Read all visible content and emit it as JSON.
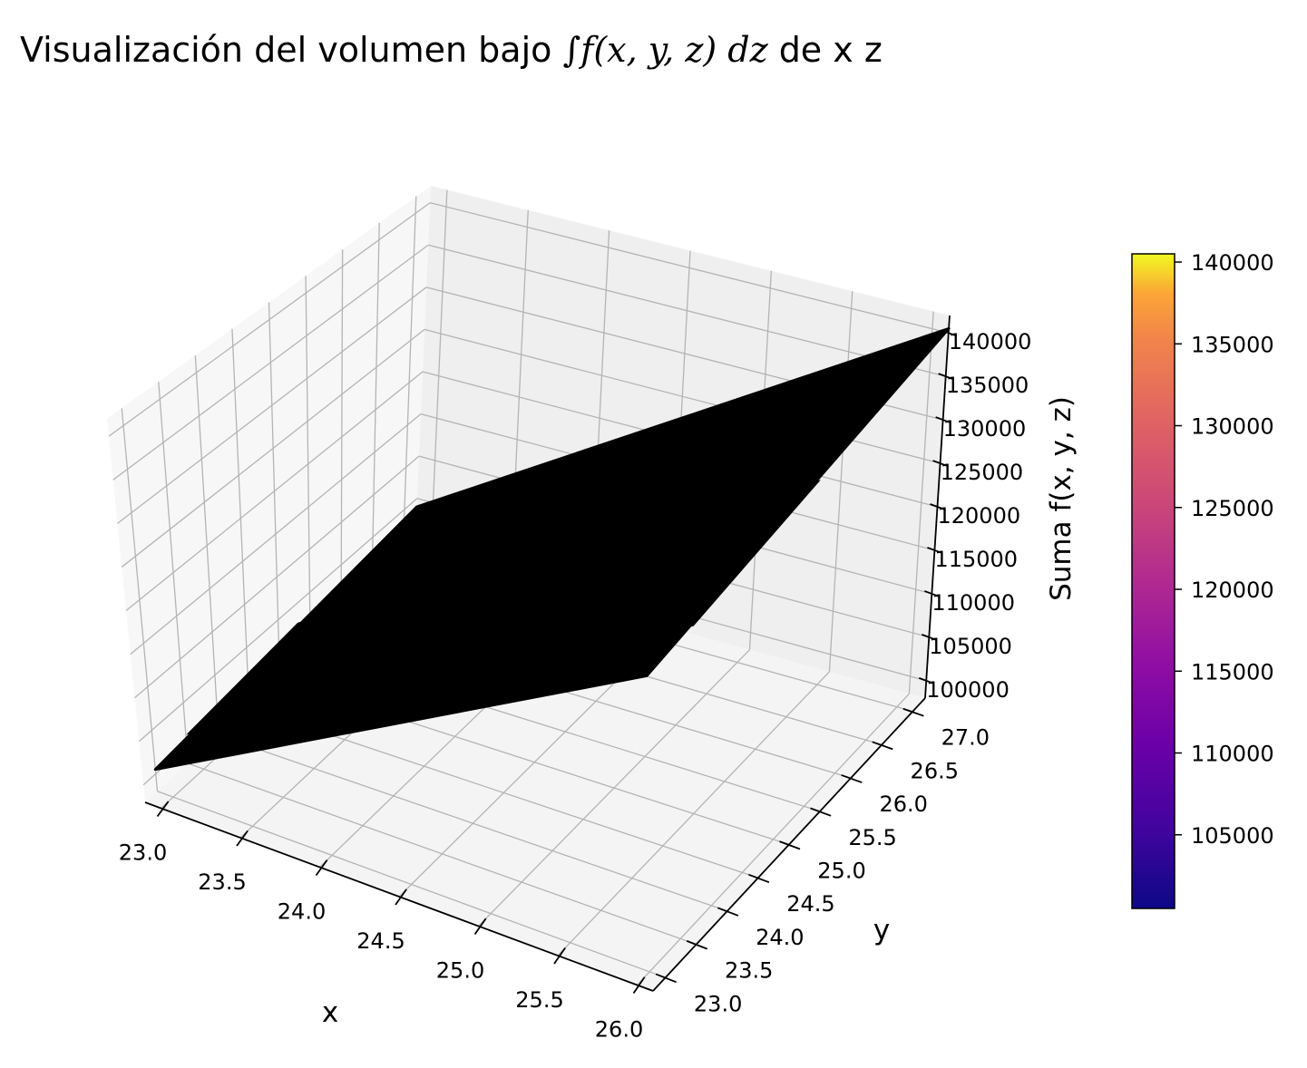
{
  "chart_data": {
    "type": "surface3d",
    "title_parts": {
      "prefix": "Visualización del volumen bajo ",
      "integral": "∫",
      "integrand": "f(x, y, z) dz",
      "suffix": " de x z"
    },
    "xlabel": "x",
    "ylabel": "y",
    "zlabel": "Suma f(x, y, z)",
    "x_ticks": [
      23.0,
      23.5,
      24.0,
      24.5,
      25.0,
      25.5,
      26.0
    ],
    "x_tick_labels": [
      "23.0",
      "23.5",
      "24.0",
      "24.5",
      "25.0",
      "25.5",
      "26.0"
    ],
    "y_ticks": [
      23.0,
      23.5,
      24.0,
      24.5,
      25.0,
      25.5,
      26.0,
      26.5,
      27.0
    ],
    "y_tick_labels": [
      "23.0",
      "23.5",
      "24.0",
      "24.5",
      "25.0",
      "25.5",
      "26.0",
      "26.5",
      "27.0"
    ],
    "z_ticks": [
      100000,
      105000,
      110000,
      115000,
      120000,
      125000,
      130000,
      135000,
      140000
    ],
    "z_tick_labels": [
      "100000",
      "105000",
      "110000",
      "115000",
      "120000",
      "125000",
      "130000",
      "135000",
      "140000"
    ],
    "colorbar": {
      "colormap": "plasma",
      "range": [
        100500,
        140500
      ],
      "ticks": [
        105000,
        110000,
        115000,
        120000,
        125000,
        130000,
        135000,
        140000
      ],
      "tick_labels": [
        "105000",
        "110000",
        "115000",
        "120000",
        "125000",
        "130000",
        "135000",
        "140000"
      ]
    },
    "surface": {
      "points": [
        {
          "x": 22.9,
          "y": 23.0,
          "z": 100500
        },
        {
          "x": 26.1,
          "y": 23.0,
          "z": 131000
        },
        {
          "x": 26.1,
          "y": 27.2,
          "z": 140500
        },
        {
          "x": 22.9,
          "y": 27.2,
          "z": 104000
        }
      ],
      "edge_color": "#000000",
      "face_color": "#000000"
    },
    "grid": true,
    "pane_color": "#f2f2f2"
  }
}
